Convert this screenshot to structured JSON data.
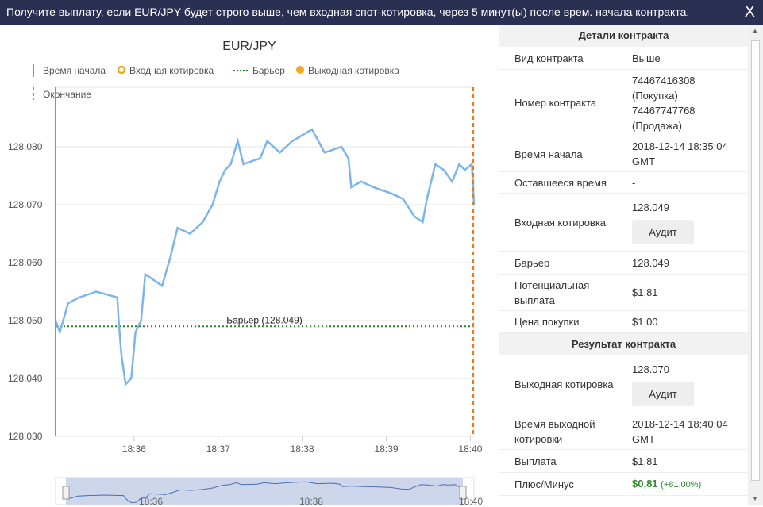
{
  "banner": {
    "text": "Получите выплату, если EUR/JPY будет строго выше, чем входная спот-котировка, через 5 минут(ы) после врем. начала контракта.",
    "close": "X"
  },
  "chart": {
    "title": "EUR/JPY",
    "legend": {
      "start": "Время начала",
      "entry": "Входная котировка",
      "barrier": "Барьер",
      "exit": "Выходная котировка",
      "end": "Окончание"
    },
    "barrier_label": "Барьер (128.049)",
    "colors": {
      "line": "#7cb5ec",
      "barrier": "#1a8c1a",
      "marker": "#f5a623",
      "vline": "#e87a1e"
    }
  },
  "chart_data": {
    "type": "line",
    "title": "EUR/JPY",
    "ylim": [
      128.03,
      128.086
    ],
    "yticks": [
      "128.030",
      "128.040",
      "128.050",
      "128.060",
      "128.070",
      "128.080"
    ],
    "xticks": [
      {
        "label": "18:36",
        "t": 56
      },
      {
        "label": "18:37",
        "t": 116
      },
      {
        "label": "18:38",
        "t": 176
      },
      {
        "label": "18:39",
        "t": 236
      },
      {
        "label": "18:40",
        "t": 296
      }
    ],
    "barrier": 128.049,
    "start_t": 0,
    "end_t": 300,
    "series": [
      {
        "name": "EUR/JPY",
        "t": [
          0,
          3,
          9,
          17,
          29,
          44,
          45,
          47,
          50,
          54,
          57,
          61,
          64,
          70,
          76,
          82,
          87,
          96,
          105,
          112,
          117,
          121,
          125,
          130,
          134,
          146,
          151,
          160,
          169,
          183,
          192,
          204,
          209,
          211,
          218,
          227,
          239,
          248,
          256,
          262,
          265,
          271,
          277,
          283,
          288,
          292,
          297,
          302
        ],
        "values": [
          128.05,
          128.048,
          128.053,
          128.054,
          128.055,
          128.054,
          128.05,
          128.044,
          128.039,
          128.04,
          128.048,
          128.05,
          128.058,
          128.057,
          128.056,
          128.061,
          128.066,
          128.065,
          128.067,
          128.07,
          128.074,
          128.076,
          128.077,
          128.081,
          128.077,
          128.078,
          128.081,
          128.079,
          128.081,
          128.083,
          128.079,
          128.08,
          128.078,
          128.073,
          128.074,
          128.073,
          128.072,
          128.071,
          128.068,
          128.067,
          128.071,
          128.077,
          128.076,
          128.074,
          128.077,
          128.076,
          128.077,
          128.07
        ]
      }
    ],
    "navigator_ticks": [
      "18:36",
      "18:38",
      "18:40"
    ]
  },
  "details": {
    "title": "Детали контракта",
    "rows": [
      {
        "k": "Вид контракта",
        "v": "Выше"
      },
      {
        "k": "Номер контракта",
        "v": [
          "74467416308",
          "(Покупка)",
          "74467747768",
          "(Продажа)"
        ]
      },
      {
        "k": "Время начала",
        "v": [
          "2018-12-14 18:35:04",
          "GMT"
        ]
      },
      {
        "k": "Оставшееся время",
        "v": "-"
      },
      {
        "k": "Входная котировка",
        "v": "128.049",
        "audit": "Аудит"
      },
      {
        "k": "Барьер",
        "v": "128.049"
      },
      {
        "k": "Потенциальная выплата",
        "v": "$1,81"
      },
      {
        "k": "Цена покупки",
        "v": "$1,00"
      }
    ]
  },
  "result": {
    "title": "Результат контракта",
    "exit_k": "Выходная котировка",
    "exit_v": "128.070",
    "audit": "Аудит",
    "exit_time_k": "Время выходной котировки",
    "exit_time_v": [
      "2018-12-14 18:40:04",
      "GMT"
    ],
    "payout_k": "Выплата",
    "payout_v": "$1,81",
    "pl_k": "Плюс/Минус",
    "pl_v": "$0,81",
    "pl_pct": "(+81.00%)",
    "pl_color": "#2e8b2e"
  }
}
